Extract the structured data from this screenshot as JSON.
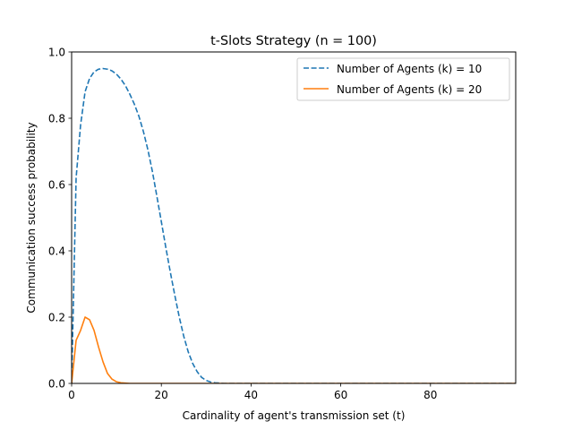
{
  "chart_data": {
    "type": "line",
    "title": "t-Slots Strategy (n = 100)",
    "xlabel": "Cardinality of agent's transmission set (t)",
    "ylabel": "Communication success probability",
    "xlim": [
      0,
      99
    ],
    "ylim": [
      0,
      1.0
    ],
    "xticks": [
      0,
      20,
      40,
      60,
      80
    ],
    "xtick_labels": [
      "0",
      "20",
      "40",
      "60",
      "80"
    ],
    "yticks": [
      0.0,
      0.2,
      0.4,
      0.6,
      0.8,
      1.0
    ],
    "ytick_labels": [
      "0.0",
      "0.2",
      "0.4",
      "0.6",
      "0.8",
      "1.0"
    ],
    "grid": false,
    "legend_position": "top-right",
    "series": [
      {
        "name": "Number of Agents (k) = 10",
        "color": "#1f77b4",
        "linestyle": "dashed",
        "x": [
          0,
          1,
          2,
          3,
          4,
          5,
          6,
          7,
          8,
          9,
          10,
          11,
          12,
          13,
          14,
          15,
          16,
          17,
          18,
          19,
          20,
          21,
          22,
          23,
          24,
          25,
          26,
          27,
          28,
          29,
          30,
          31,
          32,
          33,
          34,
          35,
          40,
          50,
          60,
          70,
          80,
          90,
          99
        ],
        "y": [
          0.0,
          0.62,
          0.78,
          0.88,
          0.92,
          0.94,
          0.948,
          0.95,
          0.948,
          0.943,
          0.933,
          0.918,
          0.898,
          0.872,
          0.842,
          0.806,
          0.76,
          0.705,
          0.64,
          0.565,
          0.488,
          0.41,
          0.336,
          0.266,
          0.2,
          0.142,
          0.095,
          0.06,
          0.035,
          0.018,
          0.009,
          0.004,
          0.002,
          0.001,
          0.0,
          0.0,
          0.0,
          0.0,
          0.0,
          0.0,
          0.0,
          0.0,
          0.0
        ]
      },
      {
        "name": "Number of Agents (k) = 20",
        "color": "#ff7f0e",
        "linestyle": "solid",
        "x": [
          0,
          1,
          2,
          3,
          4,
          5,
          6,
          7,
          8,
          9,
          10,
          11,
          12,
          13,
          14,
          15,
          20,
          30,
          40,
          50,
          60,
          70,
          80,
          90,
          99
        ],
        "y": [
          0.0,
          0.13,
          0.16,
          0.2,
          0.192,
          0.16,
          0.11,
          0.065,
          0.03,
          0.013,
          0.005,
          0.002,
          0.001,
          0.0,
          0.0,
          0.0,
          0.0,
          0.0,
          0.0,
          0.0,
          0.0,
          0.0,
          0.0,
          0.0,
          0.0
        ]
      }
    ]
  }
}
